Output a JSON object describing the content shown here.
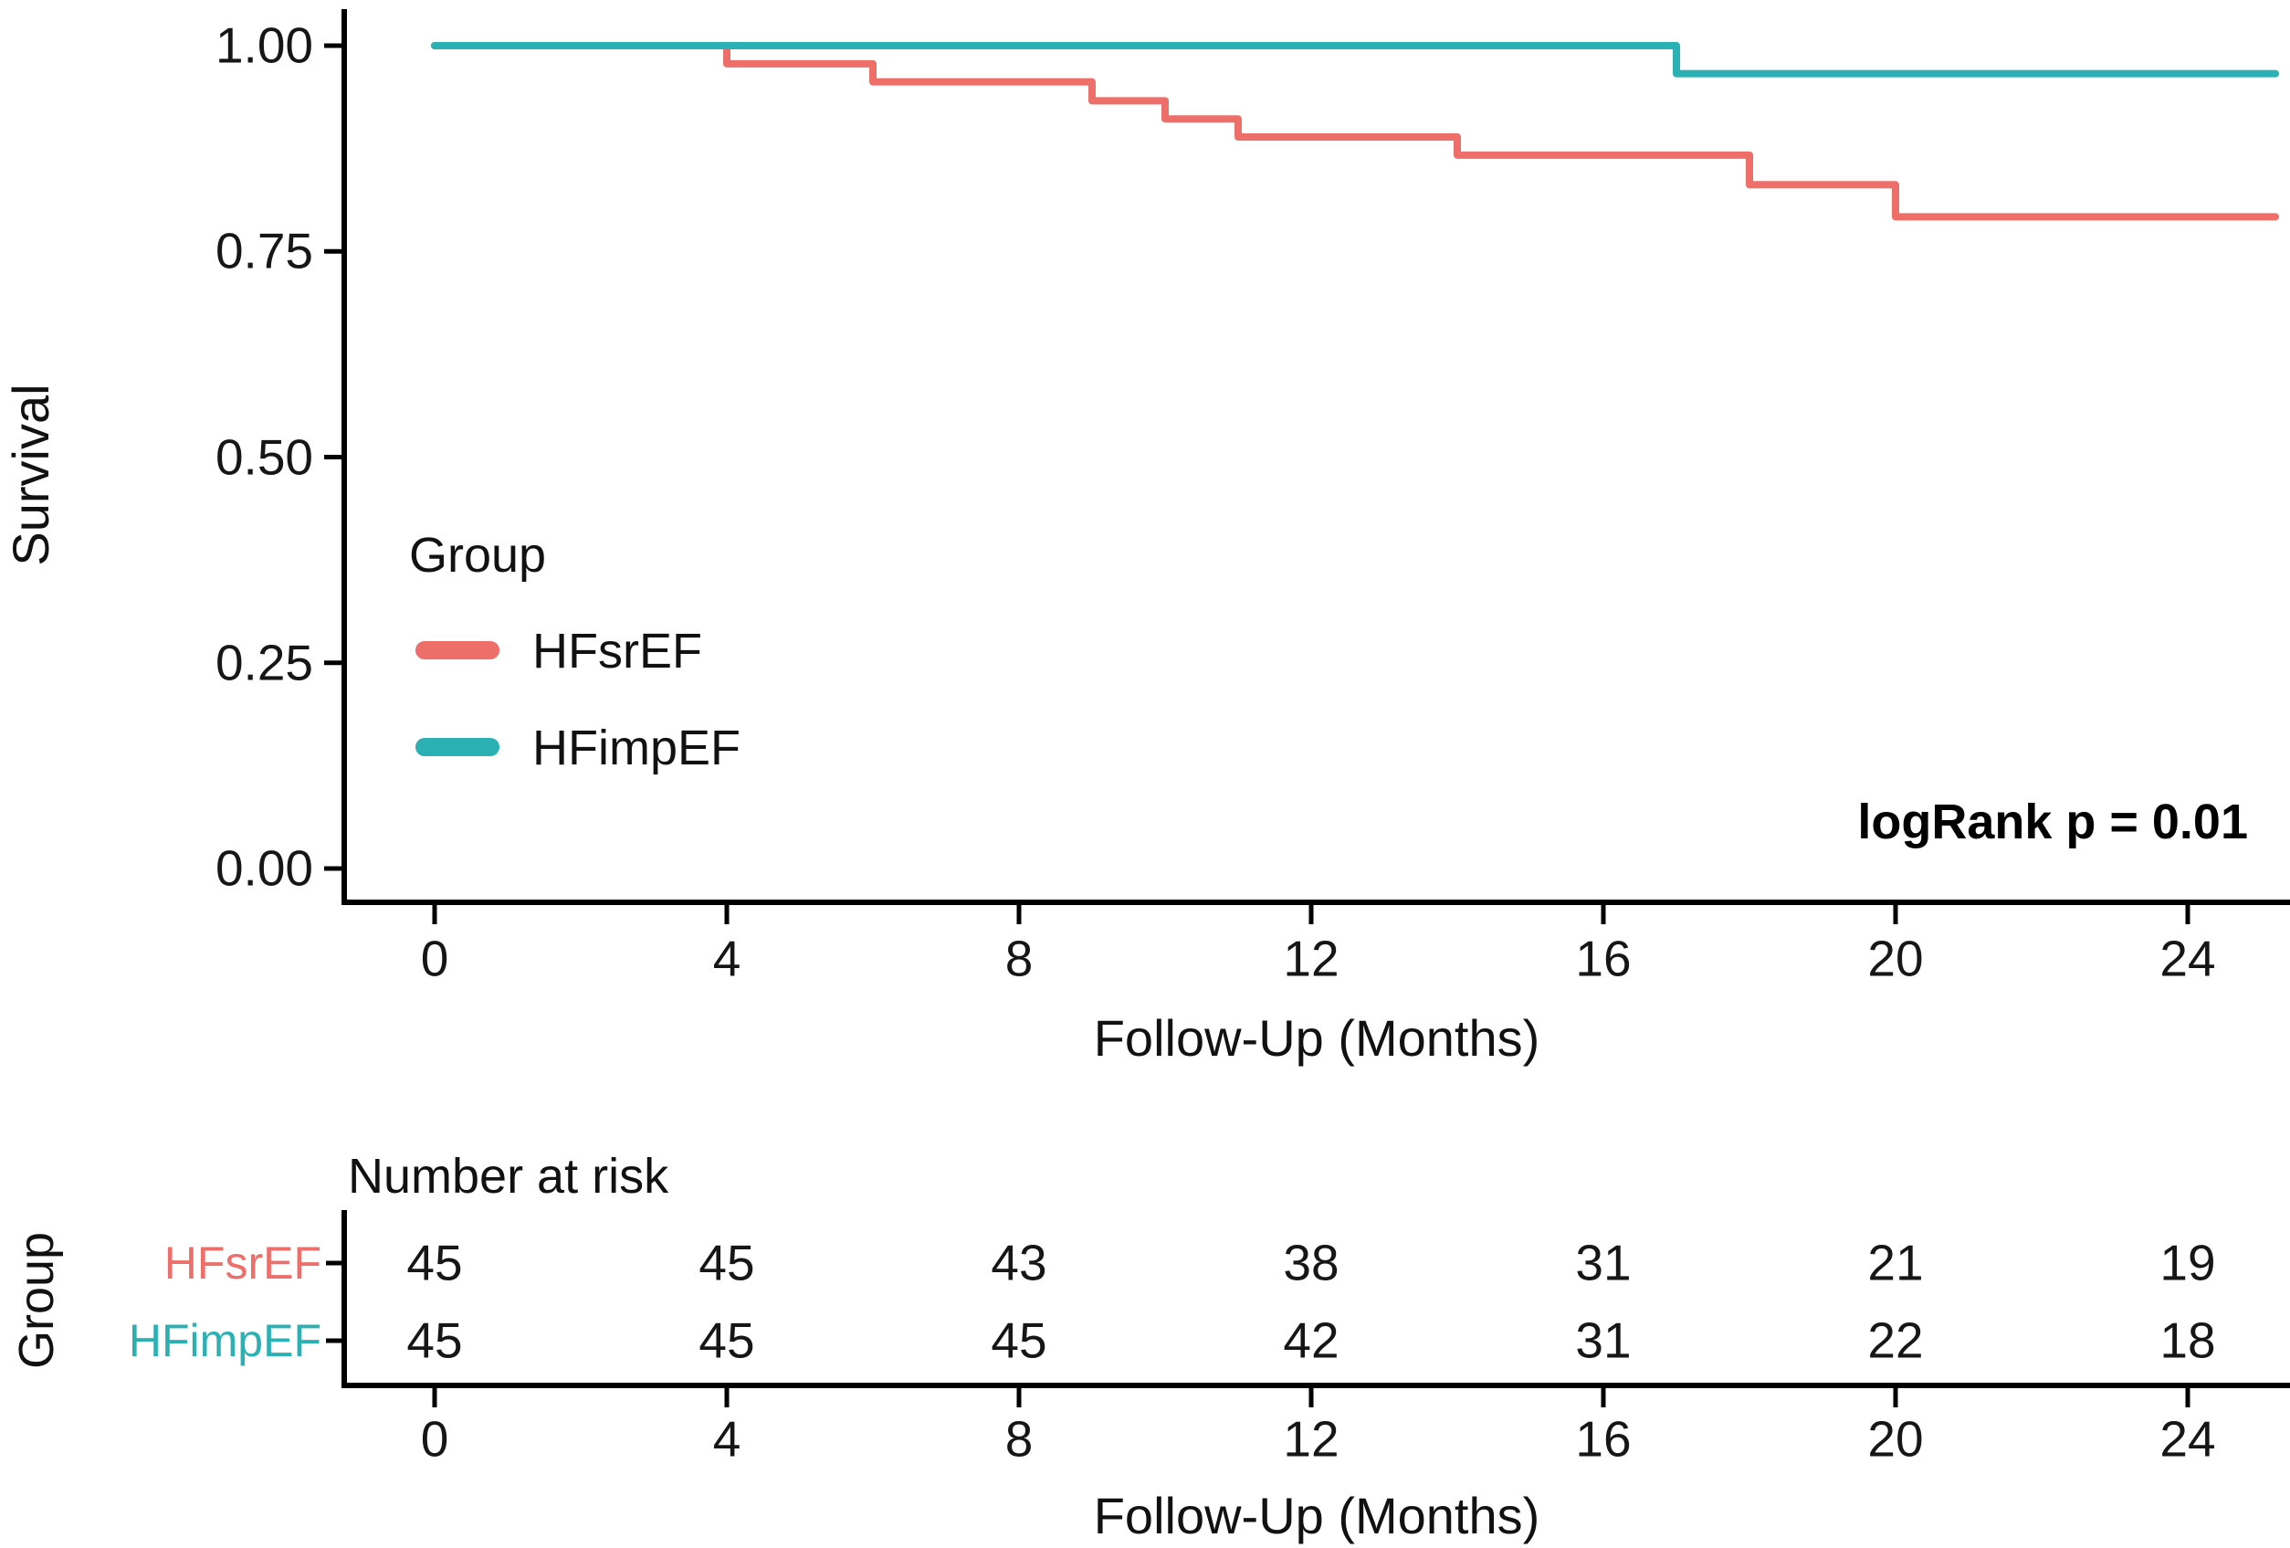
{
  "figure": {
    "plot": {
      "ylabel": "Survival",
      "xlabel": "Follow-Up (Months)",
      "legend": {
        "title": "Group"
      },
      "annotation": "logRank p = 0.01",
      "ytick_labels": [
        "0.00",
        "0.25",
        "0.50",
        "0.75",
        "1.00"
      ],
      "xtick_labels": [
        "0",
        "4",
        "8",
        "12",
        "16",
        "20",
        "24"
      ]
    },
    "risk_table": {
      "title": "Number at risk",
      "ylabel": "Group",
      "xlabel": "Follow-Up (Months)",
      "xtick_labels": [
        "0",
        "4",
        "8",
        "12",
        "16",
        "20",
        "24"
      ]
    }
  },
  "chart_data": {
    "type": "line",
    "subtype": "kaplan-meier-step-curves",
    "title": "",
    "xlabel": "Follow-Up (Months)",
    "ylabel": "Survival",
    "xlim": [
      0,
      25.2
    ],
    "ylim": [
      0.0,
      1.0
    ],
    "xticks": [
      0,
      4,
      8,
      12,
      16,
      20,
      24
    ],
    "yticks": [
      0.0,
      0.25,
      0.5,
      0.75,
      1.0
    ],
    "grid": false,
    "legend_title": "Group",
    "legend_position": "inside-left-middle",
    "annotation": {
      "text": "logRank p = 0.01",
      "x": 24,
      "y": 0.06
    },
    "series": [
      {
        "name": "HFsrEF",
        "color": "#ee6e69",
        "points": [
          [
            0,
            1.0
          ],
          [
            4,
            0.978
          ],
          [
            6,
            0.956
          ],
          [
            9,
            0.933
          ],
          [
            10,
            0.911
          ],
          [
            11,
            0.889
          ],
          [
            14,
            0.867
          ],
          [
            18,
            0.831
          ],
          [
            20,
            0.792
          ],
          [
            25.2,
            0.792
          ]
        ]
      },
      {
        "name": "HFimpEF",
        "color": "#2bb1b4",
        "points": [
          [
            0,
            1.0
          ],
          [
            17,
            0.966
          ],
          [
            25.2,
            0.966
          ]
        ]
      }
    ],
    "number_at_risk": {
      "title": "Number at risk",
      "group_axis_label": "Group",
      "months": [
        0,
        4,
        8,
        12,
        16,
        20,
        24
      ],
      "rows": [
        {
          "name": "HFsrEF",
          "color": "#ee6e69",
          "values": [
            45,
            45,
            43,
            38,
            31,
            21,
            19
          ]
        },
        {
          "name": "HFimpEF",
          "color": "#2bb1b4",
          "values": [
            45,
            45,
            45,
            42,
            31,
            22,
            18
          ]
        }
      ]
    },
    "p_value_text": "logRank p = 0.01"
  }
}
